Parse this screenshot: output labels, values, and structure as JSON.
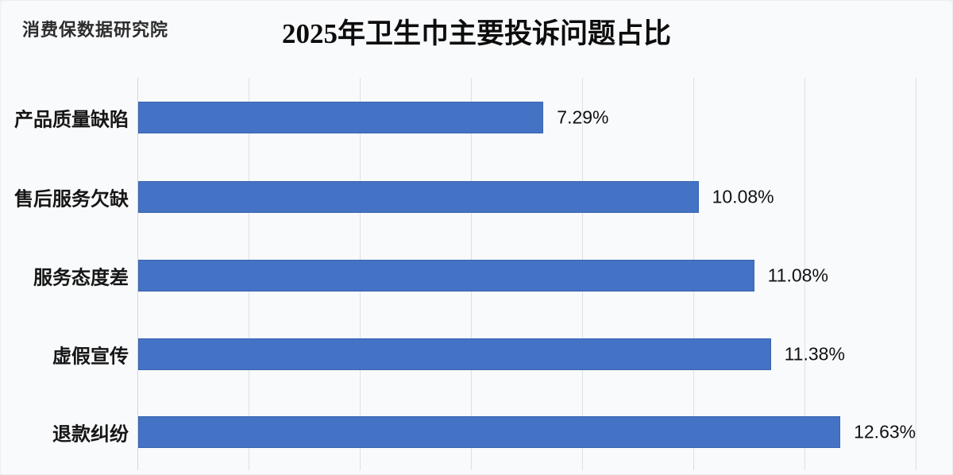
{
  "header": {
    "watermark": "消费保数据研究院",
    "title": "2025年卫生巾主要投诉问题占比"
  },
  "chart_data": {
    "type": "bar",
    "orientation": "horizontal",
    "title": "2025年卫生巾主要投诉问题占比",
    "categories": [
      "产品质量缺陷",
      "售后服务欠缺",
      "服务态度差",
      "虚假宣传",
      "退款纠纷"
    ],
    "values": [
      7.29,
      10.08,
      11.08,
      11.38,
      12.63
    ],
    "data_labels": [
      "7.29%",
      "10.08%",
      "11.08%",
      "11.38%",
      "12.63%"
    ],
    "xlim": [
      0,
      14
    ],
    "grid_step": 2,
    "grid": "vertical-only",
    "legend": "none",
    "axis_tick_labels": "none",
    "bar_color": "#4472c4",
    "bar_border_color": "#3a64b0",
    "gridline_color": "#dce0e7",
    "axis_line_color": "#d2d6de",
    "background": "#f9fafc"
  }
}
